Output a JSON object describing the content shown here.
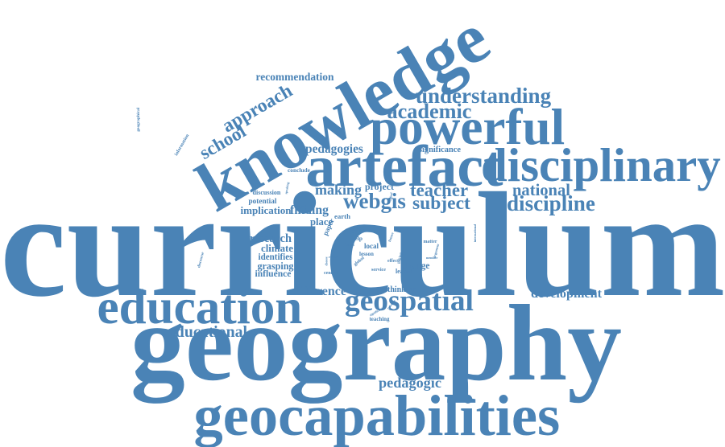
{
  "colors": {
    "text": "#4a83b6",
    "background": "#ffffff"
  },
  "words": [
    "curriculum",
    "geography",
    "knowledge",
    "education",
    "geocapabilities",
    "artefact",
    "disciplinary",
    "powerful",
    "geographical",
    "information",
    "understanding",
    "academic",
    "geospatial",
    "school",
    "approach",
    "recommendation",
    "webgis",
    "subject",
    "teacher",
    "discipline",
    "national",
    "international",
    "discourse",
    "development",
    "pedagogic",
    "educational",
    "making",
    "finding",
    "implication",
    "research",
    "climate",
    "identifies",
    "grasping",
    "influence",
    "difference",
    "pedagogies",
    "significance",
    "conclude",
    "discussion",
    "potential",
    "speaking",
    "project",
    "digital",
    "place",
    "earth",
    "paper",
    "map",
    "local",
    "lesson",
    "global",
    "future",
    "more",
    "help",
    "thinking",
    "change",
    "learnt",
    "central",
    "illustrate",
    "enhance",
    "significant",
    "teaching",
    "service",
    "argument",
    "matter",
    "linking",
    "effect",
    "member",
    "benefit",
    "record",
    "choose",
    "ideas"
  ]
}
